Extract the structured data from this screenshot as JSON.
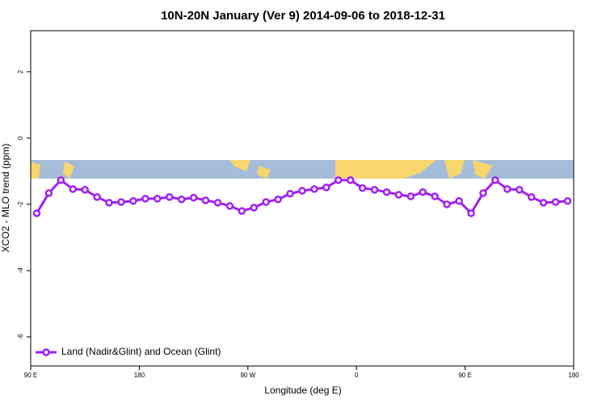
{
  "chart_data": {
    "type": "line",
    "title": "10N-20N January (Ver 9)   2014-09-06 to 2018-12-31",
    "xlabel": "Longitude (deg E)",
    "ylabel": "XCO2 - MLO trend (ppm)",
    "x": [
      95,
      105,
      115,
      125,
      135,
      145,
      155,
      165,
      175,
      185,
      195,
      205,
      215,
      225,
      235,
      245,
      255,
      265,
      275,
      285,
      295,
      305,
      315,
      325,
      335,
      345,
      355,
      365,
      375,
      385,
      395,
      405,
      415,
      425,
      435,
      445,
      455,
      465,
      475,
      485,
      495,
      505,
      515,
      525,
      535
    ],
    "series": [
      {
        "name": "Land (Nadir&Glint) and Ocean (Glint)",
        "color": "#a020f0",
        "values": [
          -2.27,
          -1.66,
          -1.27,
          -1.54,
          -1.56,
          -1.78,
          -1.95,
          -1.93,
          -1.9,
          -1.83,
          -1.83,
          -1.78,
          -1.85,
          -1.8,
          -1.88,
          -1.95,
          -2.05,
          -2.2,
          -2.1,
          -1.93,
          -1.85,
          -1.68,
          -1.59,
          -1.54,
          -1.49,
          -1.27,
          -1.27,
          -1.51,
          -1.56,
          -1.63,
          -1.71,
          -1.76,
          -1.63,
          -1.76,
          -2.0,
          -1.9,
          -2.27,
          -1.66,
          -1.27,
          -1.54,
          -1.56,
          -1.78,
          -1.95,
          -1.93,
          -1.9
        ]
      }
    ],
    "xlim": [
      90,
      540
    ],
    "xticks": [
      {
        "value": 90,
        "label": "90 E"
      },
      {
        "value": 180,
        "label": "180"
      },
      {
        "value": 270,
        "label": "90 W"
      },
      {
        "value": 360,
        "label": "0"
      },
      {
        "value": 450,
        "label": "90 E"
      },
      {
        "value": 540,
        "label": "180"
      }
    ],
    "ylim": [
      -6.88,
      3.24
    ],
    "yticks": [
      -6,
      -4,
      -2,
      0,
      2
    ],
    "grid": false,
    "legend": "bottom left"
  }
}
